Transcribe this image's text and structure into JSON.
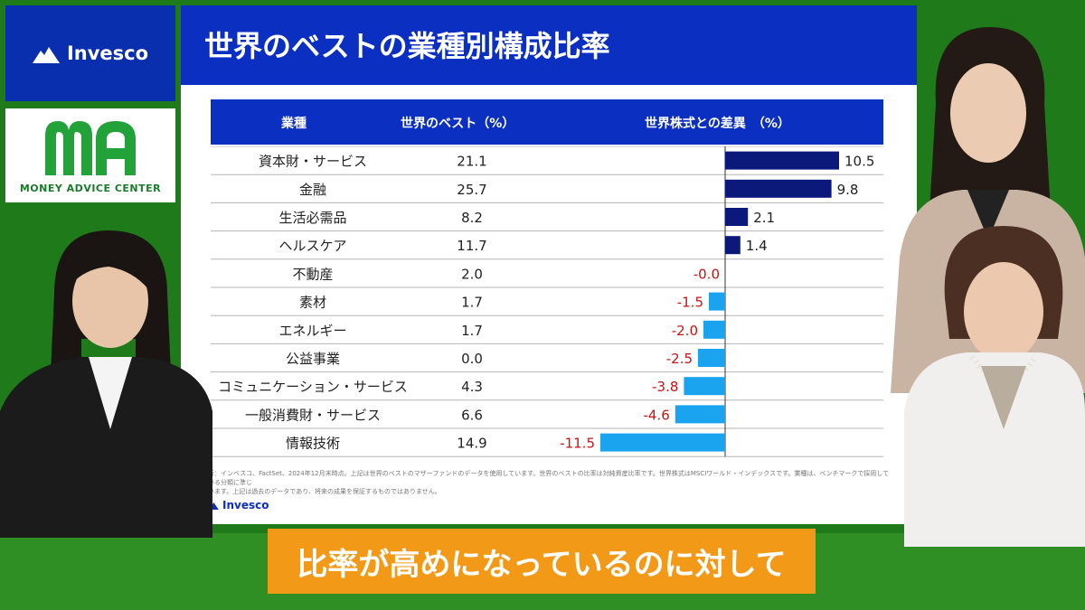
{
  "brand": {
    "invesco": "Invesco",
    "mac": "MONEY ADVICE CENTER"
  },
  "slide": {
    "title": "世界のベストの業種別構成比率",
    "footnote_line1": "所：インベスコ、FactSet、2024年12月末時点。上記は世界のベストのマザーファンドのデータを使用しています。世界のベストの比率は対純資産比率です。世界株式はMSCIワールド・インデックスです。業種は、ベンチマークで採用している分類に準じ",
    "footnote_line2": "います。上記は過去のデータであり、将来の成果を保証するものではありません。",
    "logo": "Invesco"
  },
  "caption": "比率が高めになっているのに対して",
  "chart_data": {
    "type": "bar",
    "orientation": "horizontal-diverging",
    "columns": [
      "業種",
      "世界のベスト（%）",
      "世界株式との差異　（%）"
    ],
    "categories": [
      "資本財・サービス",
      "金融",
      "生活必需品",
      "ヘルスケア",
      "不動産",
      "素材",
      "エネルギー",
      "公益事業",
      "コミュニケーション・サービス",
      "一般消費財・サービス",
      "情報技術"
    ],
    "weights": [
      "21.1",
      "25.7",
      "8.2",
      "11.7",
      "2.0",
      "1.7",
      "1.7",
      "0.0",
      "4.3",
      "6.6",
      "14.9"
    ],
    "series": [
      {
        "values": [
          10.5,
          9.8,
          2.1,
          1.4,
          -0.0,
          -1.5,
          -2.0,
          -2.5,
          -3.8,
          -4.6,
          -11.5
        ]
      }
    ],
    "value_labels": [
      "10.5",
      "9.8",
      "2.1",
      "1.4",
      "-0.0",
      "-1.5",
      "-2.0",
      "-2.5",
      "-3.8",
      "-4.6",
      "-11.5"
    ],
    "colors": {
      "positive": "#0b1a7a",
      "negative": "#1aa3ee",
      "negative_label": "#cc1111",
      "header": "#0b2fc1"
    }
  }
}
